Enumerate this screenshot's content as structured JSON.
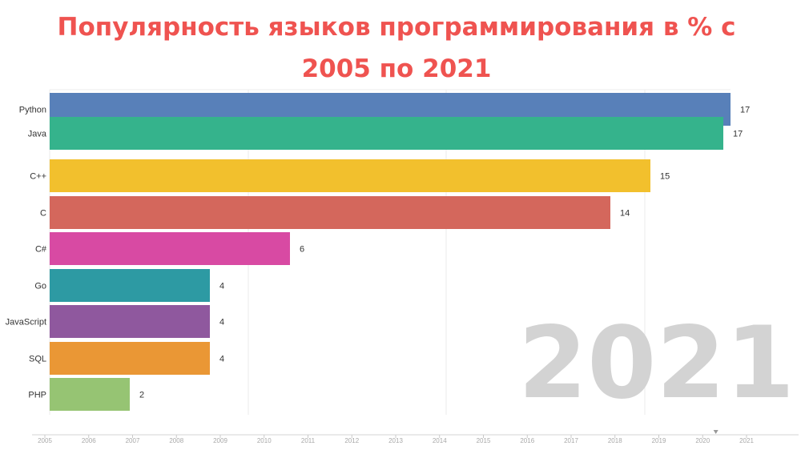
{
  "title_line1": "Популярность языков программирования в % с",
  "title_line2": "2005 по 2021",
  "chart_data": {
    "type": "bar",
    "orientation": "horizontal",
    "title": "Популярность языков программирования в % с 2005 по 2021",
    "categories": [
      "Python",
      "Java",
      "C++",
      "C",
      "C#",
      "Go",
      "JavaScript",
      "SQL",
      "PHP"
    ],
    "values": [
      17,
      17,
      15,
      14,
      6,
      4,
      4,
      4,
      2
    ],
    "colors": [
      "#5880b9",
      "#35b38c",
      "#f2c02d",
      "#d4675c",
      "#d84aa3",
      "#2d9aa3",
      "#8f589e",
      "#ea9735",
      "#96c473"
    ],
    "year": "2021",
    "timeline": [
      "2005",
      "2006",
      "2007",
      "2008",
      "2009",
      "2010",
      "2011",
      "2012",
      "2013",
      "2014",
      "2015",
      "2016",
      "2017",
      "2018",
      "2019",
      "2020",
      "2021"
    ],
    "timeline_marker": "2020.3",
    "xlim": [
      0,
      17
    ],
    "grid": true,
    "legend": "none"
  }
}
